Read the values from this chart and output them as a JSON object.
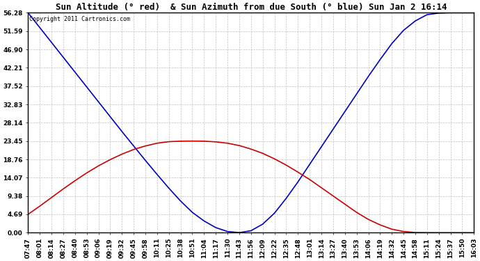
{
  "title": "Sun Altitude (° red)  & Sun Azimuth from due South (° blue) Sun Jan 2 16:14",
  "copyright": "Copyright 2011 Cartronics.com",
  "ymin": 0.0,
  "ymax": 56.29,
  "ytick_step": 4.69,
  "background_color": "#ffffff",
  "plot_bg_color": "#ffffff",
  "grid_color": "#b0b0b0",
  "blue_color": "#0000bb",
  "red_color": "#cc0000",
  "title_fontsize": 9.0,
  "tick_fontsize": 6.5,
  "copyright_fontsize": 6.0,
  "time_labels": [
    "07:47",
    "08:01",
    "08:14",
    "08:27",
    "08:40",
    "08:53",
    "09:06",
    "09:19",
    "09:32",
    "09:45",
    "09:58",
    "10:11",
    "10:25",
    "10:38",
    "10:51",
    "11:04",
    "11:17",
    "11:30",
    "11:43",
    "11:56",
    "12:09",
    "12:22",
    "12:35",
    "12:48",
    "13:01",
    "13:14",
    "13:27",
    "13:40",
    "13:53",
    "14:06",
    "14:19",
    "14:32",
    "14:45",
    "14:58",
    "15:11",
    "15:24",
    "15:37",
    "15:50",
    "16:03"
  ],
  "azimuth_values": [
    56.29,
    52.5,
    48.7,
    44.9,
    41.1,
    37.3,
    33.5,
    29.7,
    25.9,
    22.2,
    18.5,
    14.9,
    11.4,
    8.1,
    5.2,
    3.0,
    1.3,
    0.3,
    0.02,
    0.5,
    2.2,
    5.0,
    8.8,
    13.0,
    17.5,
    22.0,
    26.5,
    31.0,
    35.5,
    40.0,
    44.3,
    48.4,
    51.8,
    54.2,
    55.8,
    56.2,
    56.29,
    56.29,
    56.29
  ],
  "altitude_values": [
    4.69,
    6.8,
    9.0,
    11.2,
    13.3,
    15.3,
    17.1,
    18.7,
    20.1,
    21.3,
    22.2,
    22.9,
    23.3,
    23.42,
    23.45,
    23.42,
    23.25,
    22.9,
    22.3,
    21.4,
    20.3,
    18.9,
    17.3,
    15.5,
    13.6,
    11.5,
    9.4,
    7.3,
    5.2,
    3.4,
    2.0,
    0.9,
    0.3,
    0.05,
    0.01,
    0.0,
    0.0,
    0.0,
    0.0
  ]
}
